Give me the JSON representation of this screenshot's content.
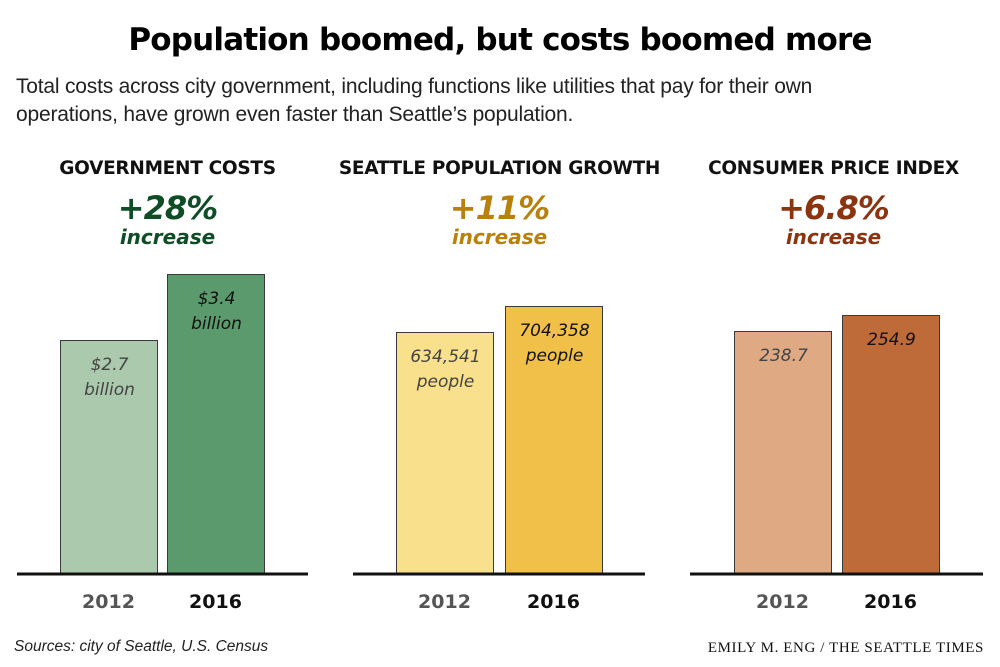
{
  "header": {
    "title": "Population boomed, but costs boomed more",
    "subtitle_line1": "Total costs across city government, including functions like utilities that pay for their own",
    "subtitle_line2": "operations, have grown even faster than Seattle’s population."
  },
  "footer": {
    "source": "Sources: city of Seattle, U.S. Census",
    "credit": "EMILY M. ENG / THE SEATTLE TIMES"
  },
  "chart_data": [
    {
      "type": "bar",
      "title": "GOVERNMENT COSTS",
      "change_label": "+28%",
      "change_sub": "increase",
      "accent_color": "#0f4d27",
      "categories": [
        "2012",
        "2016"
      ],
      "values": [
        2.7,
        3.4
      ],
      "unit": "billion USD",
      "data_labels": [
        [
          "$2.7",
          "billion"
        ],
        [
          "$3.4",
          "billion"
        ]
      ],
      "colors": [
        "#abc9ac",
        "#5a9a6c"
      ],
      "label_colors": [
        "#444444",
        "#111111"
      ]
    },
    {
      "type": "bar",
      "title": "SEATTLE POPULATION GROWTH",
      "change_label": "+11%",
      "change_sub": "increase",
      "accent_color": "#b8800c",
      "categories": [
        "2012",
        "2016"
      ],
      "values": [
        634541,
        704358
      ],
      "unit": "people",
      "data_labels": [
        [
          "634,541",
          "people"
        ],
        [
          "704,358",
          "people"
        ]
      ],
      "colors": [
        "#f8e08c",
        "#f1c049"
      ],
      "label_colors": [
        "#444444",
        "#111111"
      ]
    },
    {
      "type": "bar",
      "title": "CONSUMER PRICE INDEX",
      "change_label": "+6.8%",
      "change_sub": "increase",
      "accent_color": "#8a3410",
      "categories": [
        "2012",
        "2016"
      ],
      "values": [
        238.7,
        254.9
      ],
      "unit": "index",
      "data_labels": [
        [
          "238.7"
        ],
        [
          "254.9"
        ]
      ],
      "colors": [
        "#dea983",
        "#bf6a39"
      ],
      "label_colors": [
        "#444444",
        "#111111"
      ]
    }
  ]
}
